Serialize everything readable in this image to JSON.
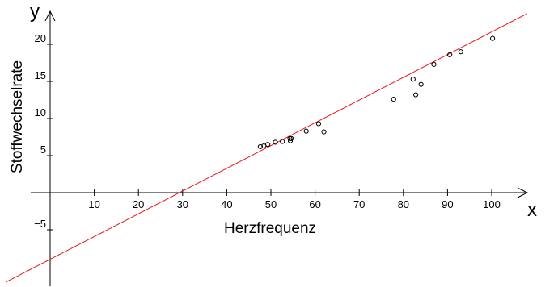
{
  "chart_data": {
    "type": "scatter",
    "xlabel": "Herzfrequenz",
    "ylabel": "Stoffwechselrate",
    "x_axis_letter": "x",
    "y_axis_letter": "y",
    "xlim": [
      -10,
      108
    ],
    "ylim": [
      -12.5,
      23.5
    ],
    "x_ticks": [
      "10",
      "20",
      "30",
      "40",
      "50",
      "60",
      "70",
      "80",
      "90",
      "100"
    ],
    "y_ticks": [
      "−5",
      "5",
      "10",
      "15",
      "20"
    ],
    "grid": false,
    "legend": "none",
    "points": [
      {
        "x": 47.6,
        "y": 6.2
      },
      {
        "x": 48.4,
        "y": 6.3
      },
      {
        "x": 49.3,
        "y": 6.5
      },
      {
        "x": 51.0,
        "y": 6.8
      },
      {
        "x": 52.6,
        "y": 6.9
      },
      {
        "x": 54.4,
        "y": 7.0
      },
      {
        "x": 54.3,
        "y": 7.3
      },
      {
        "x": 54.6,
        "y": 7.3
      },
      {
        "x": 58.0,
        "y": 8.3
      },
      {
        "x": 60.8,
        "y": 9.3
      },
      {
        "x": 62.0,
        "y": 8.2
      },
      {
        "x": 77.8,
        "y": 12.6
      },
      {
        "x": 82.2,
        "y": 15.3
      },
      {
        "x": 82.8,
        "y": 13.2
      },
      {
        "x": 84.0,
        "y": 14.6
      },
      {
        "x": 86.9,
        "y": 17.3
      },
      {
        "x": 90.5,
        "y": 18.6
      },
      {
        "x": 93.0,
        "y": 19.0
      },
      {
        "x": 100.2,
        "y": 20.8
      }
    ],
    "regression_line": {
      "slope": 0.3066,
      "intercept": -8.98,
      "color": "#e8161b"
    },
    "point_color": "#000000",
    "axis_color": "#000000"
  }
}
